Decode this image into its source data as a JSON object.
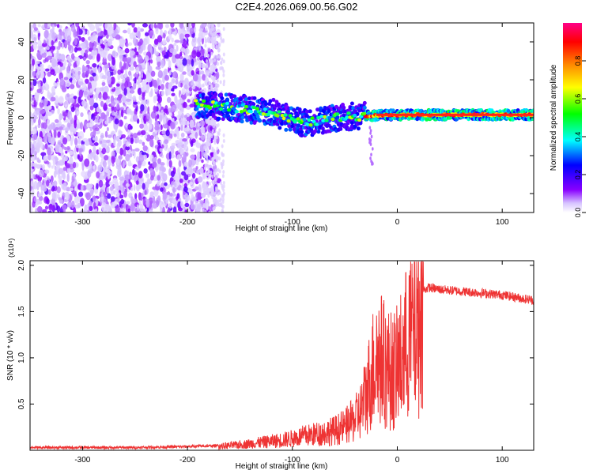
{
  "figure": {
    "title": "C2E4.2026.069.00.56.G02"
  },
  "chart_data": [
    {
      "type": "heatmap",
      "xlabel": "Height of straight line (km)",
      "ylabel": "Frequency (Hz)",
      "xlim": [
        -350,
        130
      ],
      "ylim": [
        -50,
        50
      ],
      "x_ticks": [
        -300,
        -200,
        -100,
        0,
        100
      ],
      "y_ticks": [
        -40,
        -20,
        0,
        20,
        40
      ],
      "colorbar": {
        "label": "Normalized spectral amplitude",
        "range": [
          0,
          1
        ],
        "ticks": [
          0.0,
          0.2,
          0.4,
          0.6,
          0.8
        ],
        "colormap": [
          "#ffffff",
          "#8800ff",
          "#0000ff",
          "#00ffff",
          "#00ff00",
          "#ffff00",
          "#ff8800",
          "#ff0000",
          "#ff0088"
        ]
      },
      "features": {
        "noise_region_x": [
          -350,
          -180
        ],
        "signal_track": [
          {
            "x": -190,
            "y": 7
          },
          {
            "x": -150,
            "y": 5
          },
          {
            "x": -120,
            "y": 3
          },
          {
            "x": -90,
            "y": -3
          },
          {
            "x": -60,
            "y": 0
          },
          {
            "x": -30,
            "y": 1
          },
          {
            "x": 0,
            "y": 1.5
          },
          {
            "x": 50,
            "y": 1.5
          },
          {
            "x": 100,
            "y": 1.5
          },
          {
            "x": 130,
            "y": 1.5
          }
        ]
      }
    },
    {
      "type": "line",
      "xlabel": "Height of straight line (km)",
      "ylabel": "SNR (10 * v/v)",
      "y_multiplier": "(x10⁴)",
      "xlim": [
        -350,
        130
      ],
      "ylim": [
        0,
        2.05
      ],
      "x_ticks": [
        -300,
        -200,
        -100,
        0,
        100
      ],
      "y_ticks": [
        0.5,
        1.0,
        1.5,
        2.0
      ],
      "series": [
        {
          "color": "#ee3333",
          "x": [
            -350,
            -300,
            -250,
            -200,
            -170,
            -150,
            -130,
            -110,
            -100,
            -90,
            -80,
            -70,
            -60,
            -50,
            -45,
            -40,
            -35,
            -30,
            -25,
            -20,
            -15,
            -10,
            -5,
            0,
            5,
            10,
            15,
            20,
            25,
            30,
            40,
            50,
            60,
            70,
            80,
            90,
            100,
            110,
            120,
            130
          ],
          "y": [
            0.03,
            0.03,
            0.03,
            0.04,
            0.05,
            0.07,
            0.1,
            0.13,
            0.15,
            0.18,
            0.2,
            0.22,
            0.25,
            0.3,
            0.35,
            0.4,
            0.5,
            0.7,
            0.95,
            1.2,
            1.15,
            1.05,
            1.0,
            1.05,
            1.2,
            1.4,
            1.55,
            1.67,
            1.73,
            1.76,
            1.74,
            1.73,
            1.72,
            1.71,
            1.7,
            1.69,
            1.68,
            1.66,
            1.64,
            1.62
          ]
        }
      ]
    }
  ]
}
